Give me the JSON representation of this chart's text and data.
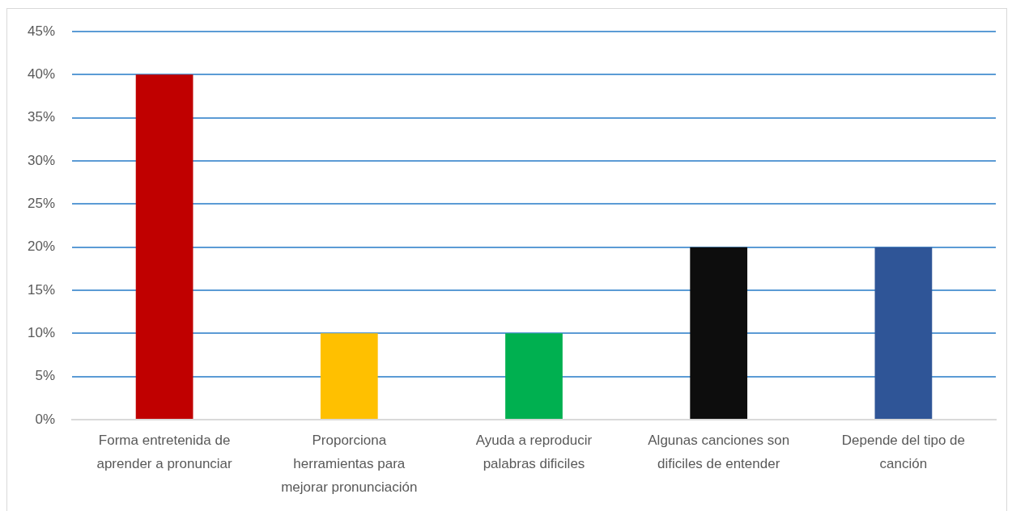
{
  "chart_data": {
    "type": "bar",
    "categories": [
      "Forma entretenida de aprender a pronunciar",
      "Proporciona herramientas para mejorar pronunciación",
      "Ayuda a reproducir palabras dificiles",
      "Algunas canciones son dificiles de entender",
      "Depende del tipo de canción"
    ],
    "values": [
      40,
      10,
      10,
      20,
      20
    ],
    "colors": [
      "#c00000",
      "#ffc000",
      "#00b050",
      "#0d0d0d",
      "#2f5597"
    ],
    "ylim": [
      0,
      45
    ],
    "yticks": [
      {
        "value": 0,
        "label": "0%"
      },
      {
        "value": 5,
        "label": "5%"
      },
      {
        "value": 10,
        "label": "10%"
      },
      {
        "value": 15,
        "label": "15%"
      },
      {
        "value": 20,
        "label": "20%"
      },
      {
        "value": 25,
        "label": "25%"
      },
      {
        "value": 30,
        "label": "30%"
      },
      {
        "value": 35,
        "label": "35%"
      },
      {
        "value": 40,
        "label": "40%"
      },
      {
        "value": 45,
        "label": "45%"
      }
    ],
    "grid": "y"
  }
}
